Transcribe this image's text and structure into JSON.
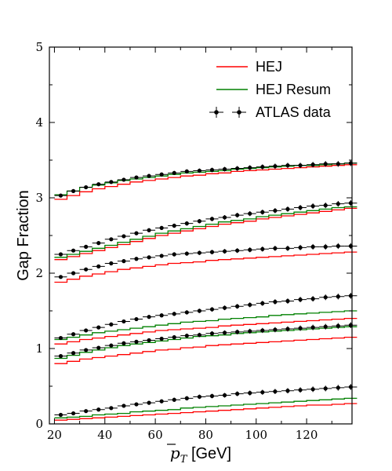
{
  "chart_data": {
    "type": "line",
    "ylabel": "Gap Fraction",
    "xlabel_math": "p",
    "xlabel_sub": "T",
    "xlabel_unit": " [GeV]",
    "xlim": [
      18,
      138
    ],
    "ylim": [
      0,
      5
    ],
    "xticks": [
      "20",
      "40",
      "60",
      "80",
      "100",
      "120"
    ],
    "xtick_values": [
      20,
      40,
      60,
      80,
      100,
      120
    ],
    "yticks": [
      "0",
      "1",
      "2",
      "3",
      "4",
      "5"
    ],
    "ytick_values": [
      0,
      1,
      2,
      3,
      4,
      5
    ],
    "bin_edges": [
      20,
      25,
      30,
      35,
      40,
      45,
      50,
      55,
      60,
      65,
      70,
      75,
      80,
      85,
      90,
      95,
      100,
      105,
      110,
      115,
      120,
      125,
      130,
      135
    ],
    "colors": {
      "hej": "#ff0000",
      "resum": "#008000",
      "data": "#000000"
    },
    "legend": {
      "position": "top-right",
      "hej": "HEJ",
      "resum": "HEJ Resum",
      "data": "ATLAS data"
    },
    "groups": [
      {
        "data": [
          0.12,
          0.14,
          0.17,
          0.19,
          0.21,
          0.24,
          0.26,
          0.28,
          0.3,
          0.32,
          0.34,
          0.36,
          0.37,
          0.38,
          0.4,
          0.41,
          0.42,
          0.43,
          0.44,
          0.45,
          0.46,
          0.47,
          0.48,
          0.49
        ],
        "hej": [
          0.05,
          0.06,
          0.07,
          0.08,
          0.09,
          0.1,
          0.11,
          0.12,
          0.13,
          0.14,
          0.15,
          0.16,
          0.17,
          0.18,
          0.19,
          0.2,
          0.21,
          0.22,
          0.23,
          0.24,
          0.25,
          0.25,
          0.26,
          0.27
        ],
        "resum": [
          0.08,
          0.09,
          0.1,
          0.12,
          0.13,
          0.14,
          0.16,
          0.17,
          0.18,
          0.19,
          0.21,
          0.22,
          0.23,
          0.24,
          0.25,
          0.26,
          0.27,
          0.28,
          0.29,
          0.3,
          0.31,
          0.32,
          0.33,
          0.34
        ]
      },
      {
        "data": [
          0.9,
          0.94,
          0.98,
          1.01,
          1.04,
          1.07,
          1.09,
          1.11,
          1.13,
          1.15,
          1.17,
          1.18,
          1.2,
          1.21,
          1.22,
          1.23,
          1.24,
          1.25,
          1.26,
          1.27,
          1.28,
          1.29,
          1.3,
          1.31
        ],
        "hej": [
          0.8,
          0.83,
          0.86,
          0.88,
          0.9,
          0.92,
          0.94,
          0.96,
          0.98,
          0.99,
          1.01,
          1.02,
          1.04,
          1.05,
          1.06,
          1.07,
          1.08,
          1.09,
          1.1,
          1.11,
          1.12,
          1.13,
          1.14,
          1.15
        ],
        "resum": [
          0.87,
          0.91,
          0.95,
          0.98,
          1.01,
          1.04,
          1.06,
          1.08,
          1.1,
          1.12,
          1.14,
          1.16,
          1.17,
          1.18,
          1.2,
          1.21,
          1.22,
          1.23,
          1.24,
          1.25,
          1.26,
          1.27,
          1.28,
          1.29
        ]
      },
      {
        "data": [
          1.14,
          1.19,
          1.24,
          1.28,
          1.32,
          1.36,
          1.39,
          1.42,
          1.44,
          1.46,
          1.48,
          1.5,
          1.52,
          1.54,
          1.56,
          1.58,
          1.6,
          1.62,
          1.63,
          1.65,
          1.66,
          1.68,
          1.69,
          1.7
        ],
        "hej": [
          1.06,
          1.09,
          1.12,
          1.14,
          1.16,
          1.18,
          1.2,
          1.22,
          1.24,
          1.25,
          1.26,
          1.27,
          1.28,
          1.3,
          1.31,
          1.32,
          1.33,
          1.34,
          1.35,
          1.36,
          1.37,
          1.38,
          1.39,
          1.4
        ],
        "resum": [
          1.12,
          1.15,
          1.18,
          1.21,
          1.23,
          1.25,
          1.27,
          1.29,
          1.31,
          1.33,
          1.35,
          1.36,
          1.37,
          1.39,
          1.4,
          1.41,
          1.42,
          1.44,
          1.45,
          1.46,
          1.47,
          1.48,
          1.49,
          1.5
        ]
      },
      {
        "data": [
          1.95,
          2.0,
          2.05,
          2.09,
          2.13,
          2.16,
          2.19,
          2.21,
          2.23,
          2.25,
          2.26,
          2.27,
          2.28,
          2.29,
          2.3,
          2.31,
          2.32,
          2.33,
          2.33,
          2.34,
          2.35,
          2.35,
          2.36,
          2.36
        ],
        "hej": [
          1.88,
          1.92,
          1.96,
          1.99,
          2.02,
          2.05,
          2.07,
          2.09,
          2.11,
          2.13,
          2.14,
          2.15,
          2.17,
          2.18,
          2.19,
          2.2,
          2.21,
          2.22,
          2.23,
          2.24,
          2.25,
          2.26,
          2.27,
          2.28
        ]
      },
      {
        "data": [
          2.25,
          2.3,
          2.35,
          2.4,
          2.45,
          2.49,
          2.53,
          2.57,
          2.6,
          2.63,
          2.66,
          2.69,
          2.72,
          2.74,
          2.77,
          2.79,
          2.81,
          2.83,
          2.85,
          2.87,
          2.89,
          2.9,
          2.92,
          2.93
        ],
        "hej": [
          2.18,
          2.22,
          2.26,
          2.3,
          2.34,
          2.38,
          2.42,
          2.46,
          2.5,
          2.53,
          2.56,
          2.59,
          2.62,
          2.65,
          2.67,
          2.69,
          2.72,
          2.74,
          2.76,
          2.78,
          2.8,
          2.82,
          2.84,
          2.86
        ],
        "resum": [
          2.21,
          2.25,
          2.29,
          2.33,
          2.37,
          2.41,
          2.45,
          2.49,
          2.53,
          2.56,
          2.59,
          2.62,
          2.65,
          2.68,
          2.7,
          2.72,
          2.75,
          2.77,
          2.79,
          2.81,
          2.83,
          2.85,
          2.87,
          2.88
        ]
      },
      {
        "data": [
          3.03,
          3.09,
          3.14,
          3.18,
          3.21,
          3.24,
          3.27,
          3.29,
          3.31,
          3.33,
          3.35,
          3.36,
          3.37,
          3.38,
          3.39,
          3.4,
          3.41,
          3.42,
          3.43,
          3.43,
          3.44,
          3.45,
          3.45,
          3.46
        ],
        "hej": [
          2.98,
          3.03,
          3.08,
          3.12,
          3.15,
          3.18,
          3.21,
          3.23,
          3.25,
          3.27,
          3.29,
          3.3,
          3.32,
          3.33,
          3.35,
          3.36,
          3.37,
          3.38,
          3.39,
          3.4,
          3.41,
          3.42,
          3.43,
          3.44
        ],
        "resum": [
          3.04,
          3.09,
          3.14,
          3.17,
          3.2,
          3.23,
          3.25,
          3.27,
          3.29,
          3.31,
          3.33,
          3.34,
          3.35,
          3.36,
          3.38,
          3.39,
          3.4,
          3.41,
          3.42,
          3.43,
          3.43,
          3.44,
          3.45,
          3.46
        ]
      }
    ]
  }
}
